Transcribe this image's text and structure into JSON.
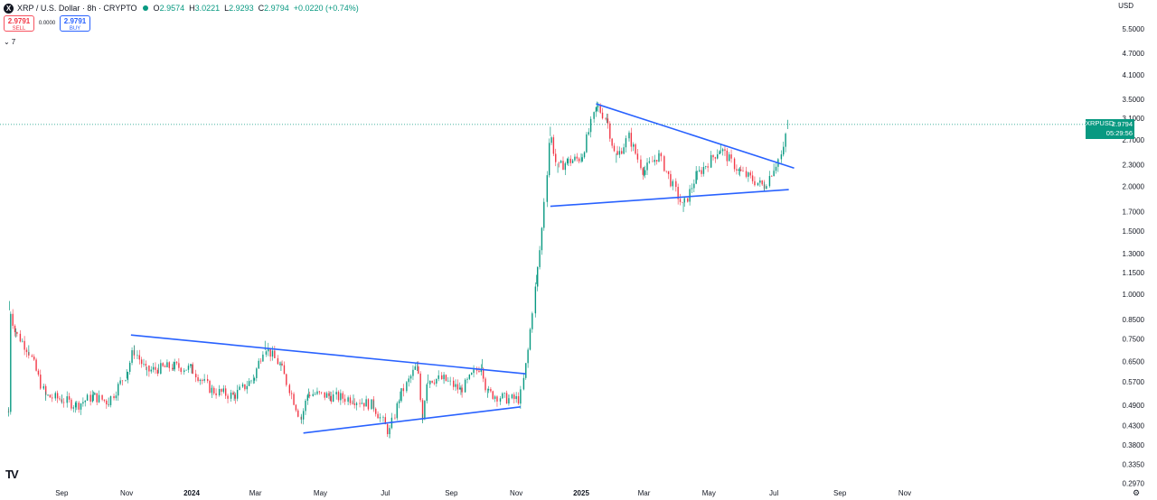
{
  "header": {
    "symbol_icon": "X",
    "symbol_title": "XRP / U.S. Dollar · 8h · CRYPTO",
    "status_color": "#089981",
    "ohlc": [
      {
        "k": "O",
        "v": "2.9574"
      },
      {
        "k": "H",
        "v": "3.0221"
      },
      {
        "k": "L",
        "v": "2.9293"
      },
      {
        "k": "C",
        "v": "2.9794"
      }
    ],
    "change": "+0.0220 (+0.74%)"
  },
  "trade": {
    "sell_price": "2.9791",
    "sell_label": "SELL",
    "spread": "0.0000",
    "buy_price": "2.9791",
    "buy_label": "BUY"
  },
  "indicators_toggle": "7",
  "currency": "USD",
  "price_tag": {
    "symbol": "XRPUSD",
    "price": "2.9794",
    "countdown": "05:29:56"
  },
  "logo_text": "TV",
  "icons": {
    "symbol": "xrp-logo-icon",
    "settings": "gear-icon",
    "collapse": "chevron-down-icon"
  },
  "colors": {
    "up": "#089981",
    "down": "#f23645",
    "trendline": "#2962ff",
    "last_price_line": "#089981"
  },
  "chart_data": {
    "type": "candlestick",
    "timeframe": "8h",
    "scale": "log",
    "y_ticks": [
      "5.5000",
      "4.7000",
      "4.1000",
      "3.5000",
      "3.1000",
      "2.7000",
      "2.3000",
      "2.0000",
      "1.7000",
      "1.5000",
      "1.3000",
      "1.1500",
      "1.0000",
      "0.8500",
      "0.7500",
      "0.6500",
      "0.5700",
      "0.4900",
      "0.4300",
      "0.3800",
      "0.3350",
      "0.2970"
    ],
    "x_ticks": [
      "Sep",
      "Nov",
      "2024",
      "Mar",
      "May",
      "Jul",
      "Sep",
      "Nov",
      "2025",
      "Mar",
      "May",
      "Jul",
      "Sep",
      "Nov"
    ],
    "last_price": 2.9794,
    "series": [
      {
        "date": "2023-07-13",
        "close": 0.47
      },
      {
        "date": "2023-07-14",
        "close": 0.93
      },
      {
        "date": "2023-07-20",
        "close": 0.78
      },
      {
        "date": "2023-08-01",
        "close": 0.7
      },
      {
        "date": "2023-08-17",
        "close": 0.52
      },
      {
        "date": "2023-09-01",
        "close": 0.51
      },
      {
        "date": "2023-09-15",
        "close": 0.49
      },
      {
        "date": "2023-10-01",
        "close": 0.52
      },
      {
        "date": "2023-10-15",
        "close": 0.5
      },
      {
        "date": "2023-11-01",
        "close": 0.6
      },
      {
        "date": "2023-11-08",
        "close": 0.7
      },
      {
        "date": "2023-11-20",
        "close": 0.61
      },
      {
        "date": "2023-12-01",
        "close": 0.62
      },
      {
        "date": "2023-12-15",
        "close": 0.63
      },
      {
        "date": "2024-01-01",
        "close": 0.62
      },
      {
        "date": "2024-01-20",
        "close": 0.54
      },
      {
        "date": "2024-02-10",
        "close": 0.52
      },
      {
        "date": "2024-02-28",
        "close": 0.58
      },
      {
        "date": "2024-03-10",
        "close": 0.72
      },
      {
        "date": "2024-03-25",
        "close": 0.63
      },
      {
        "date": "2024-04-13",
        "close": 0.45
      },
      {
        "date": "2024-04-20",
        "close": 0.53
      },
      {
        "date": "2024-05-10",
        "close": 0.52
      },
      {
        "date": "2024-06-01",
        "close": 0.51
      },
      {
        "date": "2024-06-20",
        "close": 0.49
      },
      {
        "date": "2024-07-05",
        "close": 0.41
      },
      {
        "date": "2024-07-15",
        "close": 0.52
      },
      {
        "date": "2024-07-31",
        "close": 0.63
      },
      {
        "date": "2024-08-05",
        "close": 0.45
      },
      {
        "date": "2024-08-10",
        "close": 0.58
      },
      {
        "date": "2024-08-25",
        "close": 0.58
      },
      {
        "date": "2024-09-10",
        "close": 0.54
      },
      {
        "date": "2024-09-30",
        "close": 0.64
      },
      {
        "date": "2024-10-05",
        "close": 0.53
      },
      {
        "date": "2024-10-25",
        "close": 0.51
      },
      {
        "date": "2024-11-05",
        "close": 0.51
      },
      {
        "date": "2024-11-12",
        "close": 0.68
      },
      {
        "date": "2024-11-20",
        "close": 1.1
      },
      {
        "date": "2024-11-25",
        "close": 1.45
      },
      {
        "date": "2024-12-03",
        "close": 2.85
      },
      {
        "date": "2024-12-10",
        "close": 2.25
      },
      {
        "date": "2024-12-20",
        "close": 2.35
      },
      {
        "date": "2025-01-01",
        "close": 2.4
      },
      {
        "date": "2025-01-16",
        "close": 3.35
      },
      {
        "date": "2025-01-25",
        "close": 3.1
      },
      {
        "date": "2025-02-03",
        "close": 2.4
      },
      {
        "date": "2025-02-15",
        "close": 2.75
      },
      {
        "date": "2025-03-01",
        "close": 2.2
      },
      {
        "date": "2025-03-15",
        "close": 2.45
      },
      {
        "date": "2025-04-07",
        "close": 1.75
      },
      {
        "date": "2025-04-20",
        "close": 2.15
      },
      {
        "date": "2025-05-12",
        "close": 2.55
      },
      {
        "date": "2025-05-30",
        "close": 2.2
      },
      {
        "date": "2025-06-22",
        "close": 2.0
      },
      {
        "date": "2025-07-01",
        "close": 2.25
      },
      {
        "date": "2025-07-10",
        "close": 2.5
      },
      {
        "date": "2025-07-14",
        "close": 2.98
      }
    ],
    "trendlines": [
      {
        "from": [
          "2023-11-05",
          0.77
        ],
        "to": [
          "2024-11-10",
          0.6
        ]
      },
      {
        "from": [
          "2024-04-15",
          0.41
        ],
        "to": [
          "2024-11-05",
          0.485
        ]
      },
      {
        "from": [
          "2025-01-15",
          3.4
        ],
        "to": [
          "2025-07-20",
          2.25
        ]
      },
      {
        "from": [
          "2024-12-03",
          1.76
        ],
        "to": [
          "2025-07-15",
          1.96
        ]
      }
    ]
  }
}
